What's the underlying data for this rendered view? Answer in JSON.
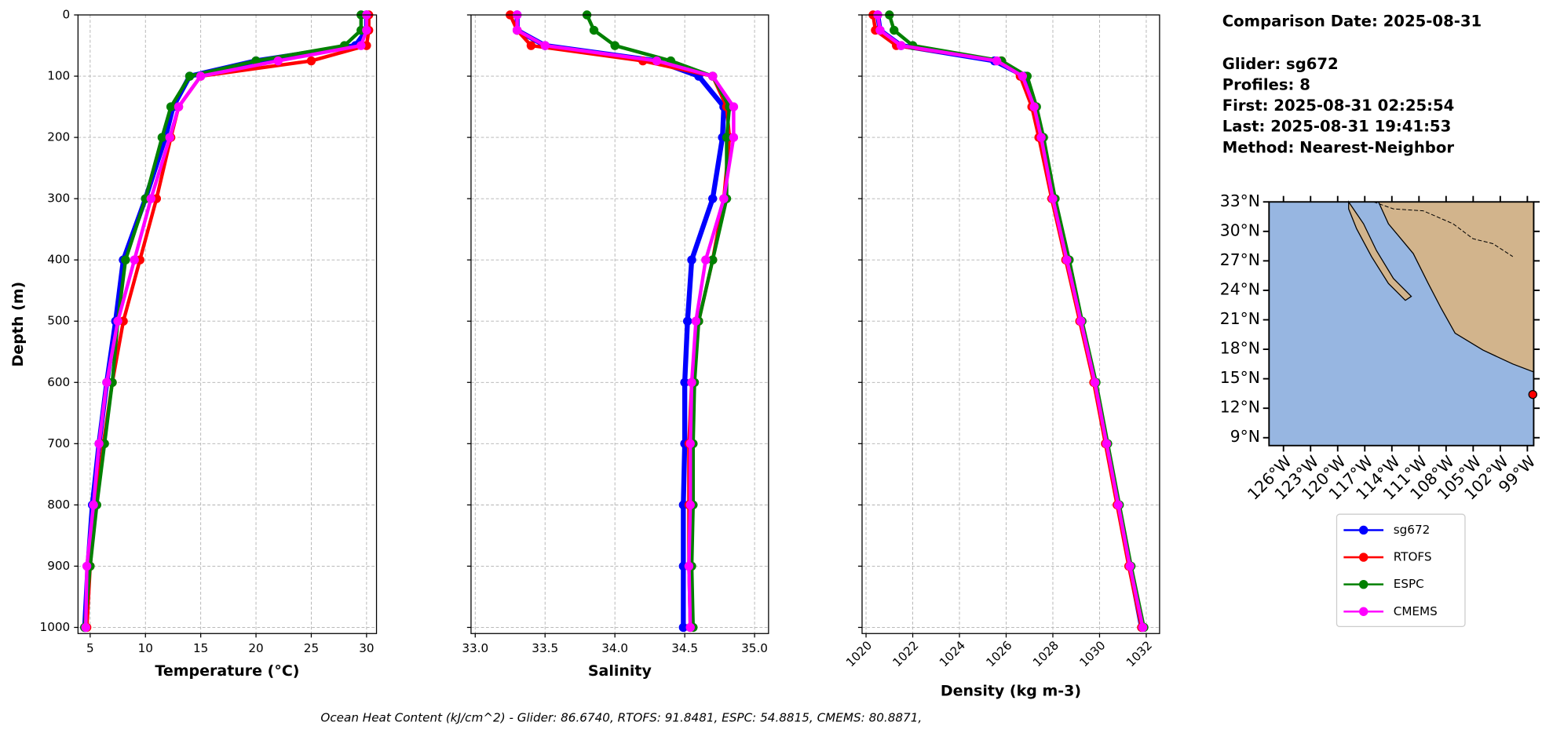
{
  "chart_data": [
    {
      "type": "line",
      "xlabel": "Temperature (°C)",
      "ylabel": "Depth (m)",
      "xlim": [
        3.9,
        30.9
      ],
      "xticks": [
        5,
        10,
        15,
        20,
        25,
        30
      ],
      "ylim": [
        0,
        1010
      ],
      "y_inverted": true,
      "yticks": [
        0,
        100,
        200,
        300,
        400,
        500,
        600,
        700,
        800,
        900,
        1000
      ],
      "grid": true,
      "depth": [
        0,
        25,
        50,
        75,
        100,
        150,
        200,
        300,
        400,
        500,
        600,
        700,
        800,
        900,
        1000
      ],
      "series": [
        {
          "name": "sg672",
          "color": "#0000ff",
          "values": [
            30,
            30,
            29,
            20,
            14,
            12.5,
            11.8,
            10,
            8,
            7.3,
            6.5,
            5.8,
            5.2,
            4.8,
            4.5
          ]
        },
        {
          "name": "RTOFS",
          "color": "#ff0000",
          "values": [
            30.2,
            30.2,
            30,
            25,
            15,
            13,
            12.3,
            11,
            9.5,
            8,
            7,
            6.2,
            5.5,
            5,
            4.7
          ]
        },
        {
          "name": "ESPC",
          "color": "#008000",
          "values": [
            29.5,
            29.5,
            28,
            20,
            14,
            12.3,
            11.5,
            10,
            8.2,
            7.5,
            7,
            6.3,
            5.6,
            5,
            4.5
          ]
        },
        {
          "name": "CMEMS",
          "color": "#ff00ff",
          "values": [
            30,
            30,
            29.5,
            22,
            15,
            13,
            12.2,
            10.5,
            9,
            7.5,
            6.5,
            5.8,
            5.3,
            4.7,
            4.6
          ]
        }
      ]
    },
    {
      "type": "line",
      "xlabel": "Salinity",
      "xlim": [
        32.97,
        35.1
      ],
      "xticks": [
        {
          "value": 33,
          "label": "33.0"
        },
        33.5,
        {
          "value": 34,
          "label": "34.0"
        },
        34.5,
        {
          "value": 35,
          "label": "35.0"
        }
      ],
      "ylim": [
        0,
        1010
      ],
      "y_inverted": true,
      "yticks": [
        0,
        100,
        200,
        300,
        400,
        500,
        600,
        700,
        800,
        900,
        1000
      ],
      "grid": true,
      "depth": [
        0,
        25,
        50,
        75,
        100,
        150,
        200,
        300,
        400,
        500,
        600,
        700,
        800,
        900,
        1000
      ],
      "series": [
        {
          "name": "sg672",
          "color": "#0000ff",
          "values": [
            33.3,
            33.3,
            33.5,
            34.3,
            34.6,
            34.78,
            34.77,
            34.7,
            34.55,
            34.52,
            34.5,
            34.5,
            34.49,
            34.49,
            34.49
          ]
        },
        {
          "name": "RTOFS",
          "color": "#ff0000",
          "values": [
            33.25,
            33.3,
            33.4,
            34.2,
            34.7,
            34.8,
            34.82,
            34.78,
            34.7,
            34.6,
            34.55,
            34.53,
            34.53,
            34.53,
            34.54
          ]
        },
        {
          "name": "ESPC",
          "color": "#008000",
          "values": [
            33.8,
            33.85,
            34,
            34.4,
            34.7,
            34.82,
            34.8,
            34.8,
            34.7,
            34.6,
            34.57,
            34.56,
            34.56,
            34.55,
            34.56
          ]
        },
        {
          "name": "CMEMS",
          "color": "#ff00ff",
          "values": [
            33.3,
            33.3,
            33.5,
            34.3,
            34.7,
            34.85,
            34.85,
            34.78,
            34.65,
            34.58,
            34.55,
            34.54,
            34.54,
            34.53,
            34.54
          ]
        }
      ]
    },
    {
      "type": "line",
      "xlabel": "Density (kg m-3)",
      "xlim": [
        1019.83,
        1032.57
      ],
      "xticks": [
        1020,
        1022,
        1024,
        1026,
        1028,
        1030,
        1032
      ],
      "ylim": [
        0,
        1010
      ],
      "y_inverted": true,
      "yticks": [
        0,
        100,
        200,
        300,
        400,
        500,
        600,
        700,
        800,
        900,
        1000
      ],
      "grid": true,
      "depth": [
        0,
        25,
        50,
        75,
        100,
        150,
        200,
        300,
        400,
        500,
        600,
        700,
        800,
        900,
        1000
      ],
      "series": [
        {
          "name": "sg672",
          "color": "#0000ff",
          "values": [
            1020.5,
            1020.6,
            1021.5,
            1025.5,
            1026.8,
            1027.2,
            1027.5,
            1028,
            1028.6,
            1029.2,
            1029.8,
            1030.3,
            1030.8,
            1031.3,
            1031.8
          ]
        },
        {
          "name": "RTOFS",
          "color": "#ff0000",
          "values": [
            1020.3,
            1020.4,
            1021.3,
            1025.8,
            1026.6,
            1027.1,
            1027.4,
            1027.95,
            1028.55,
            1029.15,
            1029.75,
            1030.25,
            1030.75,
            1031.25,
            1031.8
          ]
        },
        {
          "name": "ESPC",
          "color": "#008000",
          "values": [
            1021,
            1021.2,
            1022,
            1025.8,
            1026.9,
            1027.3,
            1027.6,
            1028.1,
            1028.7,
            1029.25,
            1029.85,
            1030.35,
            1030.85,
            1031.35,
            1031.9
          ]
        },
        {
          "name": "CMEMS",
          "color": "#ff00ff",
          "values": [
            1020.5,
            1020.6,
            1021.5,
            1025.6,
            1026.7,
            1027.2,
            1027.5,
            1028,
            1028.6,
            1029.2,
            1029.8,
            1030.3,
            1030.8,
            1031.3,
            1031.85
          ]
        }
      ]
    },
    {
      "type": "map",
      "xlim": [
        -127.6,
        -98.3
      ],
      "ylim": [
        8.2,
        33
      ],
      "xticks": [
        {
          "value": -126,
          "label": "126°W"
        },
        {
          "value": -123,
          "label": "123°W"
        },
        {
          "value": -120,
          "label": "120°W"
        },
        {
          "value": -117,
          "label": "117°W"
        },
        {
          "value": -114,
          "label": "114°W"
        },
        {
          "value": -111,
          "label": "111°W"
        },
        {
          "value": -108,
          "label": "108°W"
        },
        {
          "value": -105,
          "label": "105°W"
        },
        {
          "value": -102,
          "label": "102°W"
        },
        {
          "value": -99,
          "label": "99°W"
        }
      ],
      "yticks": [
        {
          "value": 33,
          "label": "33°N"
        },
        {
          "value": 30,
          "label": "30°N"
        },
        {
          "value": 27,
          "label": "27°N"
        },
        {
          "value": 24,
          "label": "24°N"
        },
        {
          "value": 21,
          "label": "21°N"
        },
        {
          "value": 18,
          "label": "18°N"
        },
        {
          "value": 15,
          "label": "15°N"
        },
        {
          "value": 12,
          "label": "12°N"
        },
        {
          "value": 9,
          "label": "9°N"
        }
      ],
      "point": {
        "lon": -98.4,
        "lat": 13.4,
        "color": "#ff0000"
      }
    }
  ],
  "info": [
    "Comparison Date: 2025-08-31",
    "Glider: sg672",
    "Profiles: 8",
    "First: 2025-08-31 02:25:54",
    "Last: 2025-08-31 19:41:53",
    "Method: Nearest-Neighbor"
  ],
  "caption": "Ocean Heat Content (kJ/cm^2) - Glider: 86.6740,  RTOFS: 91.8481,  ESPC: 54.8815,  CMEMS: 80.8871,"
}
